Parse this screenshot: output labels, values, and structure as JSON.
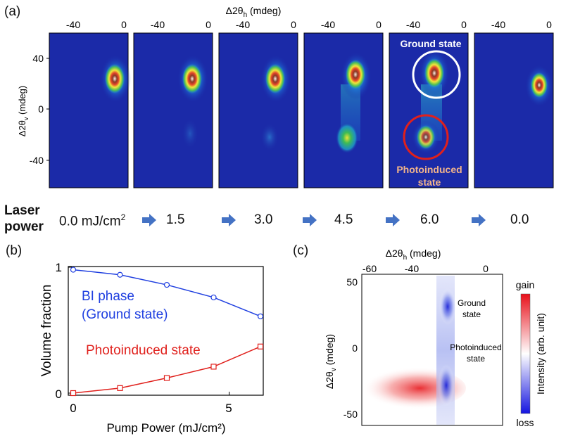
{
  "panel_a": {
    "label": "(a)",
    "x_axis_label": "Δ2θ",
    "x_axis_sub": "h",
    "x_axis_unit": " (mdeg)",
    "y_axis_label": "Δ2θ",
    "y_axis_sub": "v",
    "y_axis_unit": " (mdeg)",
    "x_ticks": [
      "-40",
      "0"
    ],
    "y_ticks": [
      "40",
      "0",
      "-40"
    ],
    "ground_state_label": "Ground state",
    "photo_label_line1": "Photoinduced",
    "photo_label_line2": "state"
  },
  "laser": {
    "title_line1": "Laser",
    "title_line2": "power",
    "unit_prefix": "0.0 mJ/cm",
    "unit_sup": "2",
    "values": [
      "1.5",
      "3.0",
      "4.5",
      "6.0",
      "0.0"
    ]
  },
  "panel_b": {
    "label": "(b)",
    "series_blue_line1": "BI phase",
    "series_blue_line2": "(Ground state)",
    "series_red": "Photoinduced state",
    "colors": {
      "blue": "#1f3fe0",
      "red": "#e0201c"
    }
  },
  "panel_c": {
    "label": "(c)",
    "x_axis_label": "Δ2θ",
    "x_axis_sub": "h",
    "x_axis_unit": " (mdeg)",
    "y_axis_label": "Δ2θ",
    "y_axis_sub": "v",
    "y_axis_unit": " (mdeg)",
    "x_ticks": [
      "-60",
      "-40",
      "0"
    ],
    "y_ticks": [
      "50",
      "0",
      "-50"
    ],
    "ground_label_line1": "Ground",
    "ground_label_line2": "state",
    "photo_label_line1": "Photoinduced",
    "photo_label_line2": "state",
    "colorbar_top": "gain",
    "colorbar_bottom": "loss",
    "colorbar_title": "Intensity (arb. unit)"
  },
  "chart_data": {
    "type": "line",
    "xlabel": "Pump Power (mJ/cm²)",
    "ylabel": "Volume fraction",
    "xlim": [
      0,
      6
    ],
    "ylim": [
      0,
      1
    ],
    "x_ticks": [
      "0",
      "5"
    ],
    "y_ticks": [
      "0",
      "1"
    ],
    "x": [
      0,
      1.5,
      3,
      4.5,
      6
    ],
    "series": [
      {
        "name": "BI phase (Ground state)",
        "marker": "circle",
        "values": [
          0.98,
          0.94,
          0.86,
          0.76,
          0.61
        ]
      },
      {
        "name": "Photoinduced state",
        "marker": "square",
        "values": [
          0.0,
          0.04,
          0.12,
          0.21,
          0.37
        ]
      }
    ]
  }
}
